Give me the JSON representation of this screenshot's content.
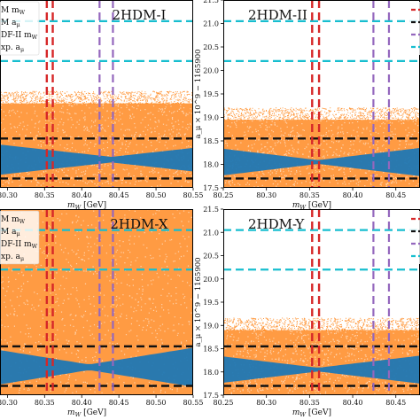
{
  "figure": {
    "legend_entries": [
      {
        "label": "SM m_W",
        "text": "M m",
        "sub": "W",
        "color": "#d62728"
      },
      {
        "label": "SM a_μ",
        "text": "M a",
        "sub": "μ",
        "color": "#111111"
      },
      {
        "label": "CDF-II m_W",
        "text": "DF-II m",
        "sub": "W",
        "color": "#9467bd"
      },
      {
        "label": "Exp. a_μ",
        "text": "xp. a",
        "sub": "μ",
        "color": "#17becf"
      }
    ],
    "colors": {
      "cloud_orange": "#ff7f0e",
      "band_blue": "#1f77b4",
      "sm_mw": "#d62728",
      "sm_amu": "#111111",
      "cdf_mw": "#9467bd",
      "exp_amu": "#17becf"
    }
  },
  "chart_data": [
    {
      "type": "scatter",
      "panel": "top-left",
      "title": "2HDM-I",
      "xlabel": "m_W [GeV]",
      "ylabel": "",
      "xlim": [
        80.29,
        80.55
      ],
      "ylim": [
        17.5,
        21.5
      ],
      "xticks": [
        "80.30",
        "80.35",
        "80.40",
        "80.45",
        "80.50",
        "80.55"
      ],
      "yticks": [],
      "show_legend": true,
      "sm_mw": [
        80.353,
        80.361
      ],
      "cdf_mw": [
        80.424,
        80.442
      ],
      "sm_amu": [
        17.7,
        18.55
      ],
      "exp_amu": [
        20.2,
        21.05
      ],
      "cloud_top": 19.3,
      "band_center": 18.1,
      "band_halfwidth_min": 0.06,
      "band_halfwidth_max": 0.32,
      "band_pinch_x": 80.44
    },
    {
      "type": "scatter",
      "panel": "top-right",
      "title": "2HDM-II",
      "xlabel": "m_W [GeV]",
      "ylabel": "a_μ × 10^9 − 1165900",
      "xlim": [
        80.25,
        80.478
      ],
      "ylim": [
        17.5,
        21.5
      ],
      "xticks": [
        "80.25",
        "80.30",
        "80.35",
        "80.40",
        "80.45"
      ],
      "yticks": [
        "17.5",
        "18.0",
        "18.5",
        "19.0",
        "19.5",
        "20.0",
        "20.5",
        "21.0",
        "21.5"
      ],
      "show_legend": false,
      "sm_mw": [
        80.353,
        80.361
      ],
      "cdf_mw": [
        80.424,
        80.442
      ],
      "sm_amu": [
        17.7,
        18.55
      ],
      "exp_amu": [
        20.2,
        21.05
      ],
      "cloud_top": 18.95,
      "band_center": 18.05,
      "band_halfwidth_min": 0.04,
      "band_halfwidth_max": 0.3,
      "band_pinch_x": 80.36
    },
    {
      "type": "scatter",
      "panel": "bottom-left",
      "title": "2HDM-X",
      "xlabel": "m_W [GeV]",
      "ylabel": "",
      "xlim": [
        80.29,
        80.55
      ],
      "ylim": [
        17.5,
        21.5
      ],
      "xticks": [
        "80.30",
        "80.35",
        "80.40",
        "80.45",
        "80.50",
        "80.55"
      ],
      "yticks": [],
      "show_legend": true,
      "sm_mw": [
        80.353,
        80.361
      ],
      "cdf_mw": [
        80.424,
        80.442
      ],
      "sm_amu": [
        17.7,
        18.55
      ],
      "exp_amu": [
        20.2,
        21.05
      ],
      "cloud_top": 21.5,
      "band_center": 18.1,
      "band_halfwidth_min": 0.06,
      "band_halfwidth_max": 0.42,
      "band_pinch_x": 80.41
    },
    {
      "type": "scatter",
      "panel": "bottom-right",
      "title": "2HDM-Y",
      "xlabel": "m_W [GeV]",
      "ylabel": "a_μ × 10^9 − 1165900",
      "xlim": [
        80.25,
        80.478
      ],
      "ylim": [
        17.5,
        21.5
      ],
      "xticks": [
        "80.25",
        "80.30",
        "80.35",
        "80.40",
        "80.45"
      ],
      "yticks": [
        "17.5",
        "18.0",
        "18.5",
        "19.0",
        "19.5",
        "20.0",
        "20.5",
        "21.0",
        "21.5"
      ],
      "show_legend": false,
      "sm_mw": [
        80.353,
        80.361
      ],
      "cdf_mw": [
        80.424,
        80.442
      ],
      "sm_amu": [
        17.7,
        18.55
      ],
      "exp_amu": [
        20.2,
        21.05
      ],
      "cloud_top": 18.9,
      "band_center": 18.05,
      "band_halfwidth_min": 0.04,
      "band_halfwidth_max": 0.3,
      "band_pinch_x": 80.36
    }
  ]
}
